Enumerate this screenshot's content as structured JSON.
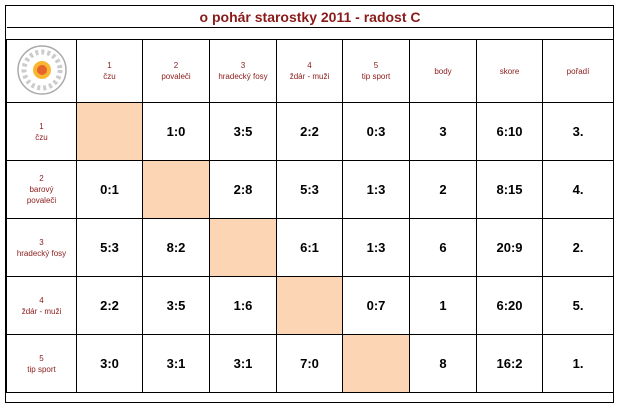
{
  "title": "o pohár starostky 2011 - radost C",
  "header": {
    "teams": [
      [
        "1",
        "čzu"
      ],
      [
        "2",
        "povaleči"
      ],
      [
        "3",
        "hradecký fosy"
      ],
      [
        "4",
        "ždár - muži"
      ],
      [
        "5",
        "tip sport"
      ]
    ],
    "columns": [
      "body",
      "skore",
      "pořadí"
    ]
  },
  "rows": [
    {
      "team": [
        "1",
        "čzu"
      ],
      "scores": [
        "1:0",
        "3:5",
        "2:2",
        "0:3"
      ],
      "body": 3,
      "skore": "6:10",
      "poradi": "3."
    },
    {
      "team": [
        "2",
        "barový",
        "povaleči"
      ],
      "scores": [
        "0:1",
        "2:8",
        "5:3",
        "1:3"
      ],
      "body": 2,
      "skore": "8:15",
      "poradi": "4."
    },
    {
      "team": [
        "3",
        "hradecký fosy"
      ],
      "scores": [
        "5:3",
        "8:2",
        "6:1",
        "1:3"
      ],
      "body": 6,
      "skore": "20:9",
      "poradi": "2."
    },
    {
      "team": [
        "4",
        "ždár - muži"
      ],
      "scores": [
        "2:2",
        "3:5",
        "1:6",
        "0:7"
      ],
      "body": 1,
      "skore": "6:20",
      "poradi": "5."
    },
    {
      "team": [
        "5",
        "tip sport"
      ],
      "scores": [
        "3:0",
        "3:1",
        "3:1",
        "7:0"
      ],
      "body": 8,
      "skore": "16:2",
      "poradi": "1."
    }
  ]
}
